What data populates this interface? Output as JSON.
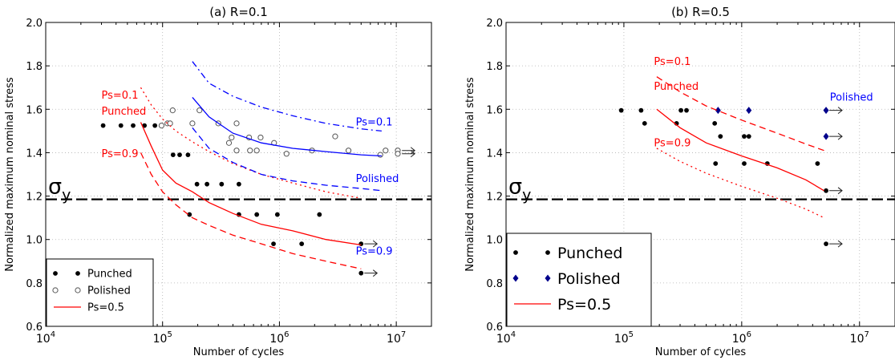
{
  "chart_data": [
    {
      "type": "scatter",
      "title": "(a) R=0.1",
      "xlabel": "Number of cycles",
      "ylabel": "Normalized maximum nominal stress",
      "x_scale": "log",
      "xlim": [
        10000,
        20000000
      ],
      "ylim": [
        0.6,
        2.0
      ],
      "x_tick_labels": [
        "10^4",
        "10^5",
        "10^6",
        "10^7"
      ],
      "y_tick_labels": [
        "0.6",
        "0.8",
        "1.0",
        "1.2",
        "1.4",
        "1.6",
        "1.8",
        "2.0"
      ],
      "grid": true,
      "legend": {
        "position": "lower-left",
        "entries": [
          {
            "label": "Punched",
            "series": "punched"
          },
          {
            "label": "Polished",
            "series": "polished"
          },
          {
            "label": "Ps=0.5",
            "series": "ps05"
          }
        ]
      },
      "reference_line": {
        "label": "σy",
        "y": 1.185
      },
      "annotations": [
        {
          "text": "Ps=0.1",
          "x": 30000,
          "y": 1.65,
          "color": "#ff0000"
        },
        {
          "text": "Punched",
          "x": 30000,
          "y": 1.575,
          "color": "#ff0000"
        },
        {
          "text": "Ps=0.9",
          "x": 30000,
          "y": 1.38,
          "color": "#ff0000"
        },
        {
          "text": "Ps=0.1",
          "x": 4500000,
          "y": 1.525,
          "color": "#0000ff"
        },
        {
          "text": "Polished",
          "x": 4500000,
          "y": 1.265,
          "color": "#0000ff"
        },
        {
          "text": "Ps=0.9",
          "x": 4500000,
          "y": 0.93,
          "color": "#0000ff"
        }
      ],
      "series": [
        {
          "id": "punched",
          "kind": "points",
          "marker": "filled-circle",
          "color": "#000000",
          "points": [
            [
              31000,
              1.525
            ],
            [
              44000,
              1.525
            ],
            [
              56000,
              1.525
            ],
            [
              70000,
              1.525
            ],
            [
              86000,
              1.525
            ],
            [
              123000,
              1.39
            ],
            [
              140000,
              1.39
            ],
            [
              165000,
              1.39
            ],
            [
              197000,
              1.255
            ],
            [
              240000,
              1.255
            ],
            [
              320000,
              1.255
            ],
            [
              450000,
              1.255
            ],
            [
              170000,
              1.115
            ],
            [
              450000,
              1.115
            ],
            [
              640000,
              1.115
            ],
            [
              960000,
              1.115
            ],
            [
              2200000,
              1.115
            ],
            [
              890000,
              0.98
            ],
            [
              1550000,
              0.98
            ],
            [
              5000000,
              0.98
            ],
            [
              5000000,
              0.845
            ]
          ]
        },
        {
          "id": "polished",
          "kind": "points",
          "marker": "open-circle",
          "color": "#555555",
          "points": [
            [
              98000,
              1.525
            ],
            [
              110000,
              1.535
            ],
            [
              122000,
              1.595
            ],
            [
              116000,
              1.535
            ],
            [
              207000,
              1.595
            ],
            [
              180000,
              1.535
            ],
            [
              300000,
              1.535
            ],
            [
              430000,
              1.535
            ],
            [
              390000,
              1.47
            ],
            [
              370000,
              1.445
            ],
            [
              430000,
              1.41
            ],
            [
              560000,
              1.41
            ],
            [
              640000,
              1.41
            ],
            [
              550000,
              1.47
            ],
            [
              690000,
              1.47
            ],
            [
              900000,
              1.445
            ],
            [
              1150000,
              1.395
            ],
            [
              1900000,
              1.41
            ],
            [
              3000000,
              1.475
            ],
            [
              3900000,
              1.41
            ],
            [
              7300000,
              1.39
            ],
            [
              8100000,
              1.41
            ],
            [
              10300000,
              1.41
            ],
            [
              10300000,
              1.395
            ]
          ]
        },
        {
          "id": "punched-ps01",
          "kind": "curve",
          "style": "dotted",
          "color": "#ff0000",
          "points": [
            [
              65000,
              1.7
            ],
            [
              80000,
              1.62
            ],
            [
              100000,
              1.555
            ],
            [
              130000,
              1.5
            ],
            [
              180000,
              1.45
            ],
            [
              250000,
              1.405
            ],
            [
              400000,
              1.35
            ],
            [
              700000,
              1.3
            ],
            [
              1300000,
              1.26
            ],
            [
              2500000,
              1.22
            ],
            [
              5000000,
              1.19
            ]
          ]
        },
        {
          "id": "ps05",
          "kind": "curve",
          "style": "solid",
          "color": "#ff0000",
          "points": [
            [
              65000,
              1.54
            ],
            [
              80000,
              1.43
            ],
            [
              100000,
              1.32
            ],
            [
              130000,
              1.26
            ],
            [
              180000,
              1.22
            ],
            [
              250000,
              1.17
            ],
            [
              400000,
              1.12
            ],
            [
              700000,
              1.07
            ],
            [
              1300000,
              1.04
            ],
            [
              2500000,
              1.0
            ],
            [
              5000000,
              0.975
            ]
          ]
        },
        {
          "id": "punched-ps09",
          "kind": "curve",
          "style": "dashed",
          "color": "#ff0000",
          "points": [
            [
              65000,
              1.4
            ],
            [
              80000,
              1.3
            ],
            [
              100000,
              1.22
            ],
            [
              130000,
              1.16
            ],
            [
              180000,
              1.1
            ],
            [
              250000,
              1.065
            ],
            [
              400000,
              1.02
            ],
            [
              700000,
              0.98
            ],
            [
              1300000,
              0.935
            ],
            [
              2500000,
              0.9
            ],
            [
              5000000,
              0.865
            ]
          ]
        },
        {
          "id": "polished-ps01",
          "kind": "curve",
          "style": "dash-dot",
          "color": "#0000ff",
          "points": [
            [
              180000,
              1.82
            ],
            [
              250000,
              1.72
            ],
            [
              400000,
              1.66
            ],
            [
              700000,
              1.61
            ],
            [
              1300000,
              1.57
            ],
            [
              2500000,
              1.535
            ],
            [
              5000000,
              1.51
            ],
            [
              7500000,
              1.5
            ]
          ]
        },
        {
          "id": "polished-ps05",
          "kind": "curve",
          "style": "solid",
          "color": "#0000ff",
          "points": [
            [
              180000,
              1.655
            ],
            [
              250000,
              1.565
            ],
            [
              400000,
              1.49
            ],
            [
              700000,
              1.445
            ],
            [
              1300000,
              1.42
            ],
            [
              2500000,
              1.405
            ],
            [
              5000000,
              1.39
            ],
            [
              7500000,
              1.385
            ]
          ]
        },
        {
          "id": "polished-ps09",
          "kind": "curve",
          "style": "dashed",
          "color": "#0000ff",
          "points": [
            [
              180000,
              1.515
            ],
            [
              250000,
              1.42
            ],
            [
              400000,
              1.355
            ],
            [
              700000,
              1.3
            ],
            [
              1300000,
              1.27
            ],
            [
              2500000,
              1.25
            ],
            [
              5000000,
              1.235
            ],
            [
              7500000,
              1.225
            ]
          ]
        }
      ],
      "runouts": [
        [
          5000000,
          0.98
        ],
        [
          5000000,
          0.845
        ],
        [
          10500000,
          1.41
        ],
        [
          10500000,
          1.395
        ]
      ]
    },
    {
      "type": "scatter",
      "title": "(b) R=0.5",
      "xlabel": "Number of cycles",
      "ylabel": "Normalized maximum nominal stress",
      "x_scale": "log",
      "xlim": [
        10000,
        20000000
      ],
      "ylim": [
        0.6,
        2.0
      ],
      "x_tick_labels": [
        "10^4",
        "10^5",
        "10^6",
        "10^7"
      ],
      "y_tick_labels": [
        "0.6",
        "0.8",
        "1.0",
        "1.2",
        "1.4",
        "1.6",
        "1.8",
        "2.0"
      ],
      "grid": true,
      "legend": {
        "position": "lower-left",
        "entries": [
          {
            "label": "Punched",
            "series": "punched"
          },
          {
            "label": "Polished",
            "series": "polished"
          },
          {
            "label": "Ps=0.5",
            "series": "ps05"
          }
        ]
      },
      "reference_line": {
        "label": "σy",
        "y": 1.185
      },
      "annotations": [
        {
          "text": "Ps=0.1",
          "x": 180000,
          "y": 1.805,
          "color": "#ff0000"
        },
        {
          "text": "Punched",
          "x": 180000,
          "y": 1.69,
          "color": "#ff0000"
        },
        {
          "text": "Ps=0.9",
          "x": 180000,
          "y": 1.43,
          "color": "#ff0000"
        },
        {
          "text": "Polished",
          "x": 5600000,
          "y": 1.64,
          "color": "#0000ff"
        }
      ],
      "series": [
        {
          "id": "punched",
          "kind": "points",
          "marker": "filled-circle",
          "color": "#000000",
          "points": [
            [
              95000,
              1.595
            ],
            [
              140000,
              1.595
            ],
            [
              305000,
              1.595
            ],
            [
              340000,
              1.595
            ],
            [
              150000,
              1.535
            ],
            [
              280000,
              1.535
            ],
            [
              590000,
              1.535
            ],
            [
              660000,
              1.475
            ],
            [
              1050000,
              1.475
            ],
            [
              1150000,
              1.475
            ],
            [
              600000,
              1.35
            ],
            [
              1050000,
              1.35
            ],
            [
              1650000,
              1.35
            ],
            [
              4400000,
              1.35
            ],
            [
              5200000,
              1.225
            ],
            [
              5200000,
              0.98
            ]
          ]
        },
        {
          "id": "polished",
          "kind": "points",
          "marker": "diamond",
          "color": "#00008b",
          "points": [
            [
              630000,
              1.595
            ],
            [
              1150000,
              1.595
            ],
            [
              5200000,
              1.595
            ],
            [
              5200000,
              1.475
            ]
          ]
        },
        {
          "id": "punched-ps01",
          "kind": "curve",
          "style": "dashed",
          "color": "#ff0000",
          "points": [
            [
              190000,
              1.75
            ],
            [
              300000,
              1.68
            ],
            [
              500000,
              1.615
            ],
            [
              1000000,
              1.55
            ],
            [
              2000000,
              1.49
            ],
            [
              3500000,
              1.44
            ],
            [
              5000000,
              1.41
            ]
          ]
        },
        {
          "id": "ps05",
          "kind": "curve",
          "style": "solid",
          "color": "#ff0000",
          "points": [
            [
              190000,
              1.6
            ],
            [
              300000,
              1.515
            ],
            [
              500000,
              1.445
            ],
            [
              1000000,
              1.385
            ],
            [
              2000000,
              1.33
            ],
            [
              3500000,
              1.275
            ],
            [
              5000000,
              1.225
            ]
          ]
        },
        {
          "id": "punched-ps09",
          "kind": "curve",
          "style": "dotted",
          "color": "#ff0000",
          "points": [
            [
              190000,
              1.42
            ],
            [
              300000,
              1.36
            ],
            [
              500000,
              1.305
            ],
            [
              1000000,
              1.245
            ],
            [
              2000000,
              1.19
            ],
            [
              3500000,
              1.14
            ],
            [
              5000000,
              1.1
            ]
          ]
        }
      ],
      "runouts": [
        [
          5200000,
          1.595
        ],
        [
          5200000,
          1.475
        ],
        [
          5200000,
          1.225
        ],
        [
          5200000,
          0.98
        ]
      ]
    }
  ]
}
